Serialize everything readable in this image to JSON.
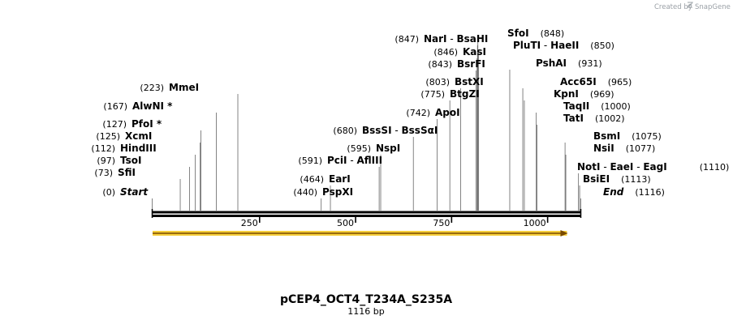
{
  "brand": {
    "created_by": "Created by",
    "name": "SnapGene"
  },
  "plasmid": {
    "name": "pCEP4_OCT4_T234A_S235A",
    "length_label": "1116 bp",
    "length": 1116
  },
  "axis": {
    "ticks": [
      250,
      500,
      750,
      1000
    ]
  },
  "feature": {
    "name": "feature-arrow",
    "start": 1,
    "end": 1080,
    "color": "#f5c518",
    "stroke": "#e8a800"
  },
  "rows": [
    {
      "num": "(0)",
      "parts": [
        {
          "text": "Start",
          "italic": true
        }
      ],
      "pos": [
        0
      ]
    },
    {
      "num": "(73)",
      "parts": [
        {
          "text": "SfiI"
        }
      ],
      "pos": [
        73
      ]
    },
    {
      "num": "(97)",
      "parts": [
        {
          "text": "TsoI"
        }
      ],
      "pos": [
        97
      ]
    },
    {
      "num": "(112)",
      "parts": [
        {
          "text": "HindIII"
        }
      ],
      "pos": [
        112
      ]
    },
    {
      "num": "(125)",
      "parts": [
        {
          "text": "XcmI"
        }
      ],
      "pos": [
        125
      ]
    },
    {
      "num": "(127)",
      "parts": [
        {
          "text": "PfoI *"
        }
      ],
      "pos": [
        127
      ]
    },
    {
      "num": "(167)",
      "parts": [
        {
          "text": "AlwNI *"
        }
      ],
      "pos": [
        167
      ]
    },
    {
      "num": "(223)",
      "parts": [
        {
          "text": "MmeI"
        }
      ],
      "pos": [
        223
      ]
    },
    {
      "num": "(440)",
      "parts": [
        {
          "text": "PspXI"
        }
      ],
      "pos": [
        440
      ]
    },
    {
      "num": "(464)",
      "parts": [
        {
          "text": "EarI"
        }
      ],
      "pos": [
        464
      ]
    },
    {
      "num": "(591)",
      "parts": [
        {
          "text": "PciI"
        },
        {
          "text": "AflIII"
        }
      ],
      "pos": [
        591
      ]
    },
    {
      "num": "(595)",
      "parts": [
        {
          "text": "NspI"
        }
      ],
      "pos": [
        595
      ]
    },
    {
      "num": "(680)",
      "parts": [
        {
          "text": "BssSI"
        },
        {
          "text": "BssSαI"
        }
      ],
      "pos": [
        680
      ]
    },
    {
      "num": "(742)",
      "parts": [
        {
          "text": "ApoI"
        }
      ],
      "pos": [
        742
      ]
    },
    {
      "num": "(775)",
      "parts": [
        {
          "text": "BtgZI"
        }
      ],
      "pos": [
        775
      ]
    },
    {
      "num": "(803)",
      "parts": [
        {
          "text": "BstXI"
        }
      ],
      "pos": [
        803
      ]
    },
    {
      "num": "(843)",
      "parts": [
        {
          "text": "BsrFI"
        }
      ],
      "pos": [
        843
      ]
    },
    {
      "num": "(846)",
      "parts": [
        {
          "text": "KasI"
        }
      ],
      "pos": [
        846
      ]
    },
    {
      "num": "(847)",
      "parts": [
        {
          "text": "NarI"
        },
        {
          "text": "BsaHI"
        }
      ],
      "pos": [
        847
      ]
    },
    {
      "num": "(848)",
      "parts": [
        {
          "text": "SfoI"
        }
      ],
      "pos": [
        848
      ]
    },
    {
      "num": "(850)",
      "parts": [
        {
          "text": "PluTI"
        },
        {
          "text": "HaeII"
        }
      ],
      "pos": [
        850
      ]
    },
    {
      "num": "(931)",
      "parts": [
        {
          "text": "PshAI"
        }
      ],
      "pos": [
        931
      ]
    },
    {
      "num": "(965)",
      "parts": [
        {
          "text": "Acc65I"
        }
      ],
      "pos": [
        965
      ]
    },
    {
      "num": "(969)",
      "parts": [
        {
          "text": "KpnI"
        }
      ],
      "pos": [
        969
      ]
    },
    {
      "num": "(1000)",
      "parts": [
        {
          "text": "TaqII"
        }
      ],
      "pos": [
        1000
      ]
    },
    {
      "num": "(1002)",
      "parts": [
        {
          "text": "TatI"
        }
      ],
      "pos": [
        1002
      ]
    },
    {
      "num": "(1075)",
      "parts": [
        {
          "text": "BsmI"
        }
      ],
      "pos": [
        1075
      ]
    },
    {
      "num": "(1077)",
      "parts": [
        {
          "text": "NsiI"
        }
      ],
      "pos": [
        1077
      ]
    },
    {
      "num": "(1110)",
      "parts": [
        {
          "text": "NotI"
        },
        {
          "text": "EaeI"
        },
        {
          "text": "EagI"
        }
      ],
      "pos": [
        1110
      ]
    },
    {
      "num": "(1113)",
      "parts": [
        {
          "text": "BsiEI"
        }
      ],
      "pos": [
        1113
      ]
    },
    {
      "num": "(1116)",
      "parts": [
        {
          "text": "End",
          "italic": true
        }
      ],
      "pos": [
        1116
      ]
    }
  ]
}
